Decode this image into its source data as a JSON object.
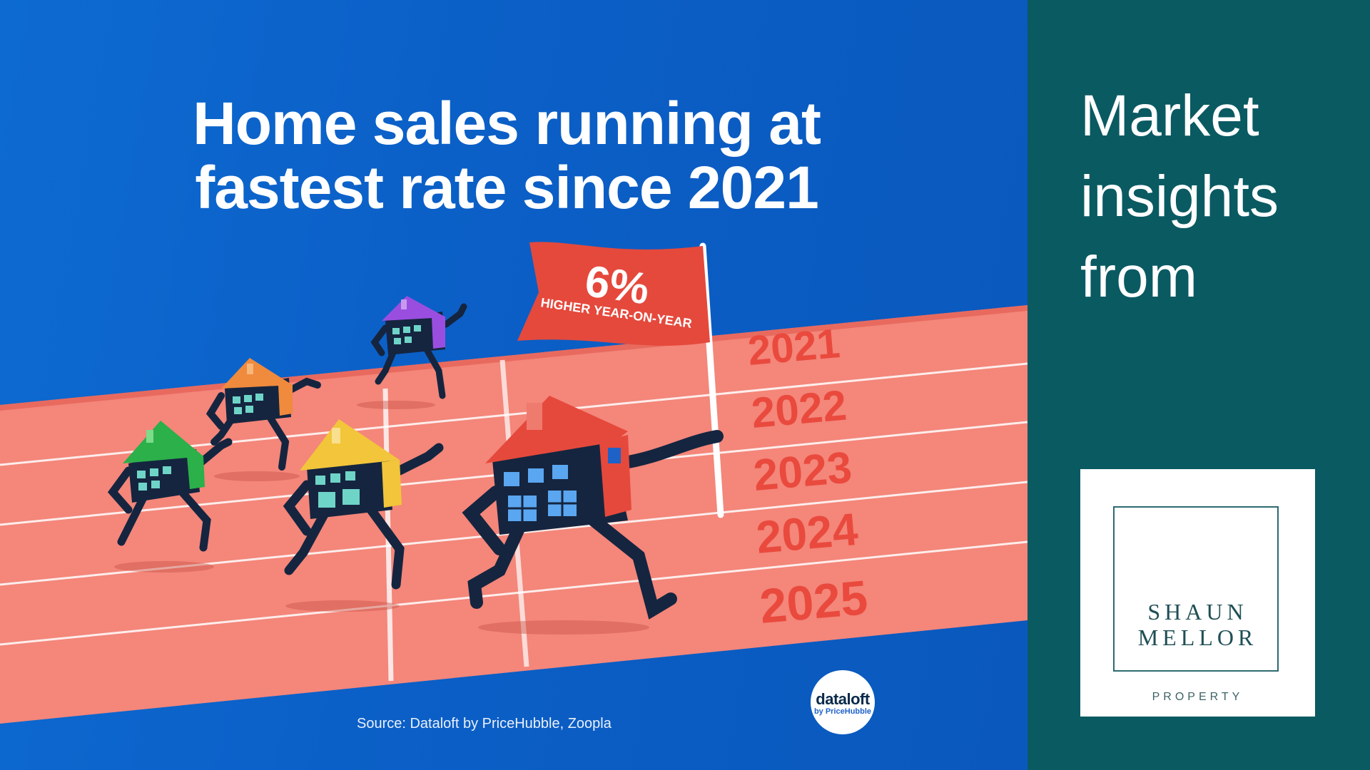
{
  "headline": {
    "line1": "Home sales running at",
    "line2": "fastest rate since 2021"
  },
  "flag": {
    "value": "6%",
    "caption": "HIGHER YEAR-ON-YEAR"
  },
  "years": [
    "2021",
    "2022",
    "2023",
    "2024",
    "2025"
  ],
  "source": "Source: Dataloft by PriceHubble, Zoopla",
  "badge": {
    "main": "dataloft",
    "sub": "by PriceHubble"
  },
  "sidebar": {
    "lines": [
      "Market",
      "insights",
      "from"
    ]
  },
  "logo": {
    "name_line1": "SHAUN",
    "name_line2": "MELLOR",
    "subtitle": "PROPERTY"
  },
  "colors": {
    "background_blue": "#0b5fc6",
    "track": "#f0857a",
    "flag": "#e5493c",
    "panel_teal": "#0a5a62"
  }
}
